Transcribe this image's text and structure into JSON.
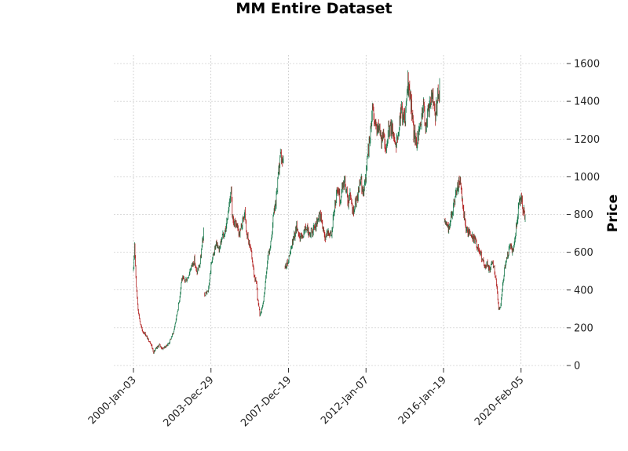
{
  "chart_data": {
    "type": "candlestick",
    "title": "MM Entire Dataset",
    "xlabel": "",
    "ylabel": "Price",
    "ylim": [
      0,
      1650
    ],
    "y_ticks": [
      0,
      200,
      400,
      600,
      800,
      1000,
      1200,
      1400,
      1600
    ],
    "x_tick_labels": [
      "2000-Jan-03",
      "2003-Dec-29",
      "2007-Dec-19",
      "2012-Jan-07",
      "2016-Jan-19",
      "2020-Feb-05"
    ],
    "grid": true,
    "y_axis_side": "right",
    "colors": {
      "up": "#1b7a4e",
      "down": "#b22222",
      "grid": "#b8b8b8"
    },
    "series": [
      {
        "segment": 1,
        "points": [
          [
            0,
            500
          ],
          [
            0.2,
            650
          ],
          [
            0.5,
            420
          ],
          [
            0.8,
            300
          ],
          [
            1.2,
            220
          ],
          [
            1.6,
            180
          ],
          [
            2,
            170
          ],
          [
            2.5,
            140
          ],
          [
            3,
            120
          ],
          [
            3.5,
            70
          ],
          [
            4,
            90
          ],
          [
            4.5,
            110
          ],
          [
            5,
            90
          ],
          [
            5.6,
            100
          ],
          [
            6.2,
            120
          ],
          [
            7,
            180
          ],
          [
            7.5,
            260
          ],
          [
            8,
            350
          ],
          [
            8.4,
            460
          ],
          [
            8.9,
            450
          ],
          [
            9.4,
            460
          ],
          [
            10,
            520
          ],
          [
            10.6,
            560
          ],
          [
            11,
            490
          ],
          [
            11.6,
            540
          ],
          [
            12,
            650
          ],
          [
            12.3,
            710
          ]
        ]
      },
      {
        "segment": 2,
        "points": [
          [
            12.4,
            380
          ],
          [
            13,
            390
          ],
          [
            13.6,
            550
          ],
          [
            14,
            600
          ],
          [
            14.4,
            640
          ],
          [
            15,
            620
          ],
          [
            15.4,
            680
          ],
          [
            16,
            720
          ],
          [
            16.4,
            780
          ],
          [
            17,
            950
          ],
          [
            17.2,
            780
          ],
          [
            17.6,
            760
          ],
          [
            18,
            730
          ],
          [
            18.5,
            700
          ],
          [
            19,
            760
          ],
          [
            19.4,
            820
          ],
          [
            19.8,
            680
          ],
          [
            20.3,
            640
          ],
          [
            20.7,
            560
          ],
          [
            21,
            480
          ],
          [
            21.4,
            430
          ],
          [
            21.6,
            360
          ],
          [
            22,
            270
          ],
          [
            22.4,
            300
          ],
          [
            22.8,
            380
          ],
          [
            23.4,
            580
          ],
          [
            24,
            650
          ],
          [
            24.4,
            800
          ],
          [
            24.8,
            850
          ],
          [
            25.2,
            1000
          ],
          [
            25.6,
            1100
          ],
          [
            26.2,
            1080
          ]
        ]
      },
      {
        "segment": 3,
        "points": [
          [
            26.4,
            520
          ],
          [
            27,
            560
          ],
          [
            27.5,
            620
          ],
          [
            28.4,
            740
          ],
          [
            29,
            680
          ],
          [
            29.5,
            690
          ],
          [
            30,
            730
          ],
          [
            30.6,
            700
          ],
          [
            31.5,
            720
          ],
          [
            32,
            760
          ],
          [
            32.5,
            800
          ],
          [
            33,
            720
          ],
          [
            33.5,
            680
          ],
          [
            34,
            710
          ],
          [
            34.5,
            700
          ],
          [
            35,
            830
          ],
          [
            35.6,
            940
          ],
          [
            36,
            870
          ],
          [
            36.4,
            950
          ],
          [
            36.8,
            980
          ],
          [
            37.4,
            850
          ],
          [
            37.8,
            920
          ],
          [
            38.2,
            810
          ],
          [
            38.6,
            860
          ],
          [
            39,
            880
          ],
          [
            39.3,
            930
          ],
          [
            39.6,
            980
          ],
          [
            40,
            920
          ],
          [
            40.4,
            990
          ],
          [
            40.7,
            1080
          ],
          [
            41.2,
            1220
          ],
          [
            41.6,
            1380
          ],
          [
            42,
            1300
          ],
          [
            42.3,
            1270
          ],
          [
            42.7,
            1260
          ],
          [
            43.1,
            1200
          ],
          [
            43.5,
            1220
          ],
          [
            44,
            1150
          ],
          [
            44.5,
            1250
          ],
          [
            45,
            1270
          ],
          [
            45.6,
            1180
          ],
          [
            46.1,
            1200
          ],
          [
            46.6,
            1360
          ],
          [
            47,
            1300
          ],
          [
            47.4,
            1320
          ],
          [
            47.8,
            1500
          ],
          [
            48.1,
            1420
          ],
          [
            48.4,
            1390
          ],
          [
            48.8,
            1230
          ],
          [
            49.3,
            1190
          ],
          [
            49.7,
            1210
          ],
          [
            50.1,
            1300
          ],
          [
            50.5,
            1370
          ],
          [
            50.8,
            1270
          ],
          [
            51.2,
            1310
          ],
          [
            51.5,
            1380
          ],
          [
            51.8,
            1420
          ],
          [
            52.2,
            1400
          ],
          [
            52.5,
            1300
          ],
          [
            52.9,
            1420
          ],
          [
            53.4,
            1460
          ]
        ]
      },
      {
        "segment": 4,
        "points": [
          [
            54.2,
            760
          ],
          [
            54.6,
            740
          ],
          [
            55,
            720
          ],
          [
            55.3,
            800
          ],
          [
            55.7,
            840
          ],
          [
            56.1,
            900
          ],
          [
            56.5,
            950
          ],
          [
            56.9,
            980
          ],
          [
            57.2,
            880
          ],
          [
            57.6,
            780
          ],
          [
            58,
            720
          ],
          [
            58.5,
            700
          ],
          [
            59,
            680
          ],
          [
            59.5,
            660
          ],
          [
            60,
            620
          ],
          [
            60.4,
            600
          ],
          [
            60.8,
            560
          ],
          [
            61.2,
            520
          ],
          [
            61.6,
            540
          ],
          [
            62,
            500
          ],
          [
            62.5,
            560
          ],
          [
            62.9,
            500
          ],
          [
            63.3,
            420
          ],
          [
            63.6,
            300
          ],
          [
            63.9,
            300
          ],
          [
            64.3,
            420
          ],
          [
            64.6,
            500
          ],
          [
            64.9,
            560
          ],
          [
            65.3,
            600
          ],
          [
            65.7,
            640
          ],
          [
            66,
            600
          ],
          [
            66.4,
            680
          ],
          [
            66.8,
            760
          ],
          [
            67.1,
            850
          ],
          [
            67.5,
            900
          ],
          [
            67.9,
            820
          ],
          [
            68.3,
            780
          ]
        ]
      }
    ]
  }
}
